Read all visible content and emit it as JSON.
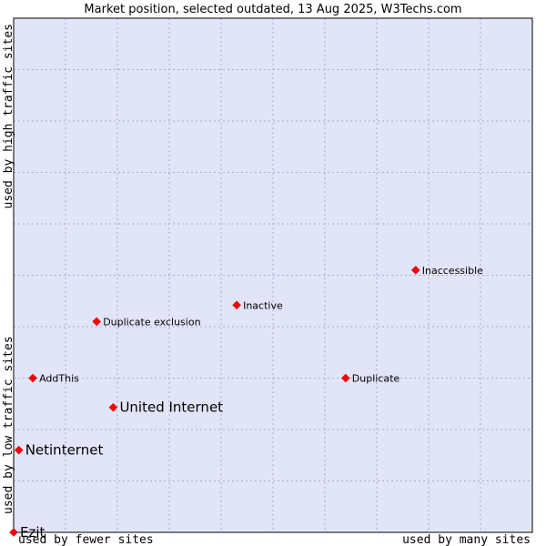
{
  "chart_data": {
    "type": "scatter",
    "title": "Market position, selected outdated, 13 Aug 2025, W3Techs.com",
    "xlabel_left": "used by fewer sites",
    "xlabel_right": "used by many sites",
    "ylabel_bottom": "used by low traffic sites",
    "ylabel_top": "used by high traffic sites",
    "grid": true,
    "xlim": [
      0,
      10
    ],
    "ylim": [
      0,
      10
    ],
    "colors": {
      "plot_background": "#e2e4f8",
      "grid": "#a9abd0",
      "border": "#000000",
      "marker": "#ff0000"
    },
    "points": [
      {
        "name": "Inaccessible",
        "x": 7.75,
        "y": 5.1,
        "emphasis": false
      },
      {
        "name": "Inactive",
        "x": 4.3,
        "y": 4.42,
        "emphasis": false
      },
      {
        "name": "Duplicate exclusion",
        "x": 1.6,
        "y": 4.1,
        "emphasis": false
      },
      {
        "name": "AddThis",
        "x": 0.37,
        "y": 3.0,
        "emphasis": false
      },
      {
        "name": "Duplicate",
        "x": 6.4,
        "y": 3.0,
        "emphasis": false
      },
      {
        "name": "United Internet",
        "x": 1.92,
        "y": 2.43,
        "emphasis": true
      },
      {
        "name": "Netinternet",
        "x": 0.1,
        "y": 1.6,
        "emphasis": true
      },
      {
        "name": "Ezit",
        "x": 0.0,
        "y": 0.0,
        "emphasis": true
      }
    ]
  }
}
